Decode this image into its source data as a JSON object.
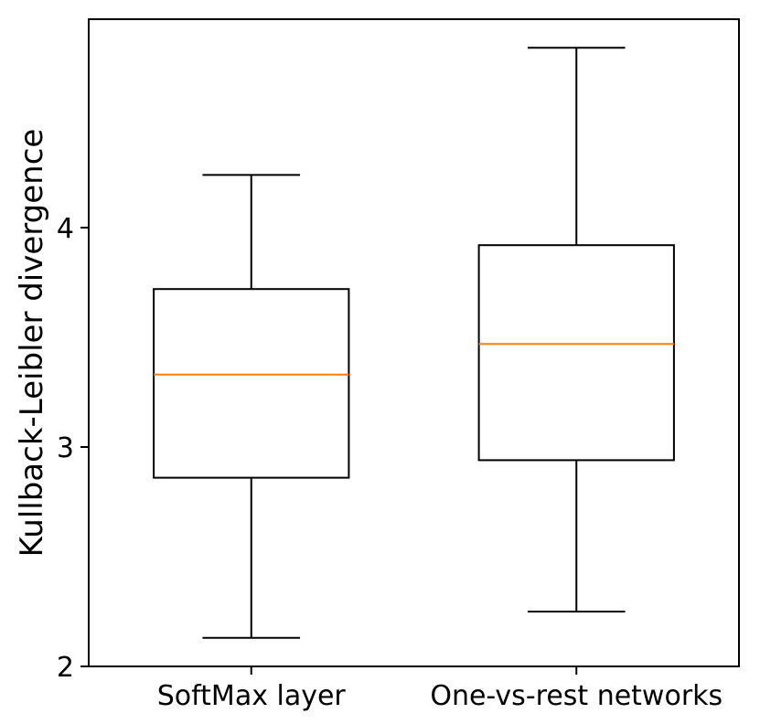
{
  "chart_data": {
    "type": "box",
    "title": "",
    "xlabel": "",
    "ylabel": "Kullback-Leibler divergence",
    "ylim": [
      2.0,
      4.95
    ],
    "yticks": [
      2,
      3,
      4
    ],
    "grid": false,
    "categories": [
      "SoftMax layer",
      "One-vs-rest networks"
    ],
    "series": [
      {
        "whisker_low": 2.13,
        "q1": 2.86,
        "median": 3.33,
        "q3": 3.72,
        "whisker_high": 4.24
      },
      {
        "whisker_low": 2.25,
        "q1": 2.94,
        "median": 3.47,
        "q3": 3.92,
        "whisker_high": 4.82
      }
    ],
    "colors": {
      "box": "#000000",
      "median": "#ff7f0e"
    }
  }
}
